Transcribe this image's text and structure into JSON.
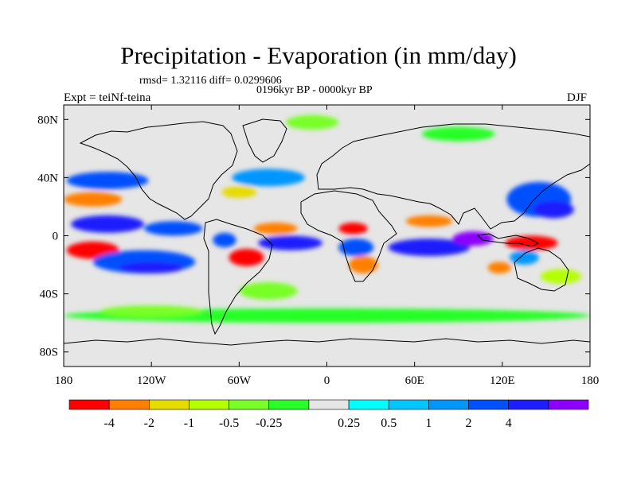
{
  "title": "Precipitation - Evaporation (in mm/day)",
  "stats_line": "rmsd= 1.32116 diff= 0.0299606",
  "period_line": "0196kyr BP - 0000kyr BP",
  "experiment_label": "Expt = teiNf-teina",
  "season_label": "DJF",
  "map": {
    "projection": "cylindrical-equidistant",
    "lon_range": [
      -180,
      180
    ],
    "lat_range": [
      -90,
      90
    ],
    "xticks": [
      {
        "lon": -180,
        "label": "180"
      },
      {
        "lon": -120,
        "label": "120W"
      },
      {
        "lon": -60,
        "label": "60W"
      },
      {
        "lon": 0,
        "label": "0"
      },
      {
        "lon": 60,
        "label": "60E"
      },
      {
        "lon": 120,
        "label": "120E"
      },
      {
        "lon": 180,
        "label": "180"
      }
    ],
    "yticks": [
      {
        "lat": 80,
        "label": "80N"
      },
      {
        "lat": 40,
        "label": "40N"
      },
      {
        "lat": 0,
        "label": "0"
      },
      {
        "lat": -40,
        "label": "40S"
      },
      {
        "lat": -80,
        "label": "80S"
      }
    ],
    "background_color": "#e6e6e6",
    "coastline_color": "#000000"
  },
  "colorbar": {
    "colors": [
      "#ff0000",
      "#ff8000",
      "#e6dc00",
      "#b4ff00",
      "#78ff28",
      "#28ff28",
      "#e6e6e6",
      "#00ffff",
      "#00c8ff",
      "#0096ff",
      "#0050ff",
      "#1e1eff",
      "#8c00ff"
    ],
    "labels": [
      "-4",
      "-2",
      "-1",
      "-0.5",
      "-0.25",
      "0.25",
      "0.5",
      "1",
      "2",
      "4"
    ],
    "label_boundaries": [
      1,
      2,
      3,
      4,
      5,
      7,
      8,
      9,
      10,
      11
    ]
  },
  "field_regions": [
    {
      "name": "pacific-itcz-north",
      "lon": -150,
      "lat": 8,
      "rx": 25,
      "ry": 6,
      "level": 11
    },
    {
      "name": "pacific-itcz-north-east",
      "lon": -105,
      "lat": 5,
      "rx": 20,
      "ry": 5,
      "level": 10
    },
    {
      "name": "pacific-dry-south",
      "lon": -160,
      "lat": -10,
      "rx": 18,
      "ry": 6,
      "level": 0
    },
    {
      "name": "pacific-spcz",
      "lon": -125,
      "lat": -18,
      "rx": 35,
      "ry": 8,
      "level": 10
    },
    {
      "name": "pacific-spcz-core",
      "lon": -120,
      "lat": -22,
      "rx": 22,
      "ry": 4,
      "level": 11
    },
    {
      "name": "north-pacific-wet",
      "lon": -150,
      "lat": 38,
      "rx": 28,
      "ry": 6,
      "level": 10
    },
    {
      "name": "north-pacific-dry",
      "lon": -160,
      "lat": 25,
      "rx": 20,
      "ry": 5,
      "level": 1
    },
    {
      "name": "west-pacific-wet",
      "lon": 145,
      "lat": 25,
      "rx": 22,
      "ry": 12,
      "level": 10
    },
    {
      "name": "west-pacific-core",
      "lon": 155,
      "lat": 18,
      "rx": 14,
      "ry": 6,
      "level": 11
    },
    {
      "name": "maritime-dry",
      "lon": 140,
      "lat": -5,
      "rx": 18,
      "ry": 5,
      "level": 0
    },
    {
      "name": "indian-ocean-wet",
      "lon": 70,
      "lat": -8,
      "rx": 28,
      "ry": 6,
      "level": 11
    },
    {
      "name": "indian-ocean-wet-east",
      "lon": 100,
      "lat": -2,
      "rx": 14,
      "ry": 5,
      "level": 12
    },
    {
      "name": "north-indian-dry",
      "lon": 70,
      "lat": 10,
      "rx": 16,
      "ry": 4,
      "level": 1
    },
    {
      "name": "africa-wet",
      "lon": 20,
      "lat": -8,
      "rx": 12,
      "ry": 6,
      "level": 10
    },
    {
      "name": "africa-dry",
      "lon": 25,
      "lat": -20,
      "rx": 10,
      "ry": 6,
      "level": 1
    },
    {
      "name": "africa-dry-north",
      "lon": 18,
      "lat": 5,
      "rx": 10,
      "ry": 4,
      "level": 0
    },
    {
      "name": "atlantic-wet",
      "lon": -25,
      "lat": -5,
      "rx": 22,
      "ry": 5,
      "level": 11
    },
    {
      "name": "atlantic-dry",
      "lon": -35,
      "lat": 5,
      "rx": 15,
      "ry": 4,
      "level": 1
    },
    {
      "name": "amazon-dry",
      "lon": -55,
      "lat": -15,
      "rx": 12,
      "ry": 6,
      "level": 0
    },
    {
      "name": "amazon-wet",
      "lon": -70,
      "lat": -3,
      "rx": 8,
      "ry": 5,
      "level": 10
    },
    {
      "name": "south-atlantic-wet",
      "lon": -40,
      "lat": -38,
      "rx": 20,
      "ry": 6,
      "level": 4
    },
    {
      "name": "north-atlantic-wet",
      "lon": -40,
      "lat": 40,
      "rx": 25,
      "ry": 6,
      "level": 9
    },
    {
      "name": "north-atlantic-dry",
      "lon": -60,
      "lat": 30,
      "rx": 12,
      "ry": 4,
      "level": 2
    },
    {
      "name": "arctic-wet",
      "lon": -10,
      "lat": 78,
      "rx": 18,
      "ry": 5,
      "level": 4
    },
    {
      "name": "siberia-wet",
      "lon": 90,
      "lat": 70,
      "rx": 25,
      "ry": 5,
      "level": 5
    },
    {
      "name": "southern-ocean-band",
      "lon": 0,
      "lat": -55,
      "rx": 180,
      "ry": 5,
      "level": 5
    },
    {
      "name": "southern-ocean-pacific",
      "lon": -120,
      "lat": -52,
      "rx": 35,
      "ry": 4,
      "level": 4
    },
    {
      "name": "australia-wet",
      "lon": 135,
      "lat": -15,
      "rx": 10,
      "ry": 5,
      "level": 9
    },
    {
      "name": "tasman-dry",
      "lon": 160,
      "lat": -28,
      "rx": 14,
      "ry": 5,
      "level": 3
    },
    {
      "name": "nw-australia-dry",
      "lon": 118,
      "lat": -22,
      "rx": 8,
      "ry": 4,
      "level": 1
    }
  ]
}
